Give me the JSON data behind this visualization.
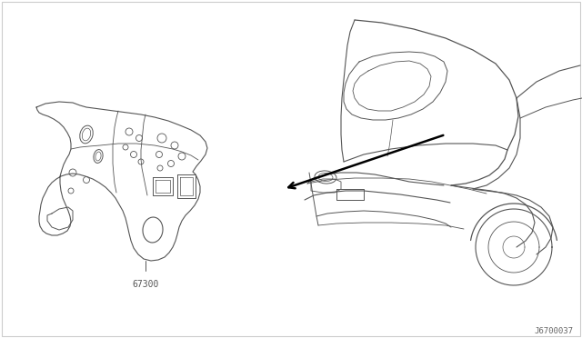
{
  "background_color": "#ffffff",
  "border_color": "#cccccc",
  "part_label": "67300",
  "diagram_id": "J6700037",
  "line_color": "#555555",
  "arrow_color": "#000000",
  "label_fontsize": 7,
  "id_fontsize": 6.5,
  "fig_width": 6.4,
  "fig_height": 3.72,
  "dpi": 100
}
